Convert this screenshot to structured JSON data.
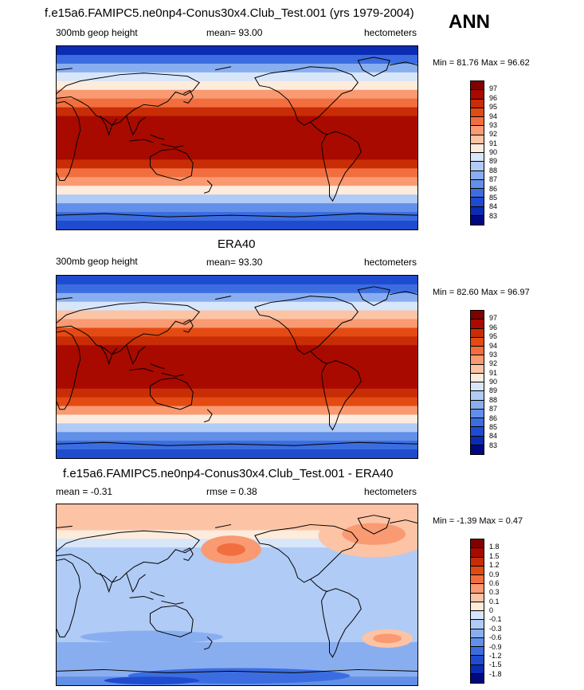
{
  "season": "ANN",
  "units": "hectometers",
  "panels": [
    {
      "title": "f.e15a6.FAMIPC5.ne0np4-Conus30x4.Club_Test.001 (yrs 1979-2004)",
      "field": "300mb geop height",
      "mean_text": "mean=  93.00",
      "minmax_text": "Min =  81.76 Max =  96.62"
    },
    {
      "title": "ERA40",
      "field": "300mb geop height",
      "mean_text": "mean=  93.30",
      "minmax_text": "Min =  82.60 Max =  96.97"
    },
    {
      "title": "f.e15a6.FAMIPC5.ne0np4-Conus30x4.Club_Test.001 - ERA40",
      "mean_text": "mean =  -0.31",
      "rmse_text": "rmse =   0.38",
      "minmax_text": "Min =  -1.39 Max =   0.47"
    }
  ],
  "chart_data": [
    {
      "type": "heatmap",
      "title": "f.e15a6.FAMIPC5.ne0np4-Conus30x4.Club_Test.001 (yrs 1979-2004)",
      "field": "300mb geop height",
      "units": "hectometers",
      "mean": 93.0,
      "min": 81.76,
      "max": 96.62,
      "colorbar_levels": [
        "97",
        "96",
        "95",
        "94",
        "93",
        "92",
        "91",
        "90",
        "89",
        "88",
        "87",
        "86",
        "85",
        "84",
        "83"
      ],
      "colorbar_colors": [
        "#800000",
        "#a80a00",
        "#c82d06",
        "#e34b13",
        "#f26e3f",
        "#f99a72",
        "#fcc3a5",
        "#fdebdc",
        "#d8e6fa",
        "#b0cbf5",
        "#89aef0",
        "#628fe8",
        "#3c6de0",
        "#1f4bd0",
        "#0a2cb2",
        "#000880"
      ],
      "profile_levels": [
        83.5,
        85,
        87,
        89,
        90.5,
        92,
        93.5,
        95,
        96.2,
        96.8,
        96.6,
        96.8,
        96.2,
        95,
        93.5,
        92,
        90,
        88,
        86,
        85,
        84.5
      ]
    },
    {
      "type": "heatmap",
      "title": "ERA40",
      "field": "300mb geop height",
      "units": "hectometers",
      "mean": 93.3,
      "min": 82.6,
      "max": 96.97,
      "colorbar_levels": [
        "97",
        "96",
        "95",
        "94",
        "93",
        "92",
        "91",
        "90",
        "89",
        "88",
        "87",
        "86",
        "85",
        "84",
        "83"
      ],
      "colorbar_colors": [
        "#800000",
        "#a80a00",
        "#c82d06",
        "#e34b13",
        "#f26e3f",
        "#f99a72",
        "#fcc3a5",
        "#fdebdc",
        "#d8e6fa",
        "#b0cbf5",
        "#89aef0",
        "#628fe8",
        "#3c6de0",
        "#1f4bd0",
        "#0a2cb2",
        "#000880"
      ],
      "profile_levels": [
        84,
        85.5,
        87.5,
        89.5,
        91,
        92.5,
        94,
        95.3,
        96.5,
        96.9,
        96.8,
        96.9,
        96.5,
        95.3,
        94,
        92.3,
        90.3,
        88.3,
        86.3,
        85.2,
        84.8
      ]
    },
    {
      "type": "heatmap",
      "title": "f.e15a6.FAMIPC5.ne0np4-Conus30x4.Club_Test.001 - ERA40",
      "units": "hectometers",
      "mean": -0.31,
      "rmse": 0.38,
      "min": -1.39,
      "max": 0.47,
      "colorbar_levels": [
        "1.8",
        "1.5",
        "1.2",
        "0.9",
        "0.6",
        "0.3",
        "0.1",
        "0",
        "-0.1",
        "-0.3",
        "-0.6",
        "-0.9",
        "-1.2",
        "-1.5",
        "-1.8"
      ],
      "colorbar_colors": [
        "#800000",
        "#a80a00",
        "#c82d06",
        "#e34b13",
        "#f26e3f",
        "#f99a72",
        "#fcc3a5",
        "#fdebdc",
        "#d8e6fa",
        "#b0cbf5",
        "#89aef0",
        "#628fe8",
        "#3c6de0",
        "#1f4bd0",
        "#0a2cb2",
        "#000880"
      ],
      "profile_levels": [
        0.25,
        0.2,
        0.1,
        0.0,
        -0.1,
        -0.2,
        -0.25,
        -0.25,
        -0.25,
        -0.3,
        -0.3,
        -0.3,
        -0.25,
        -0.25,
        -0.3,
        -0.3,
        -0.35,
        -0.4,
        -0.5,
        -0.6,
        -0.7
      ]
    }
  ]
}
